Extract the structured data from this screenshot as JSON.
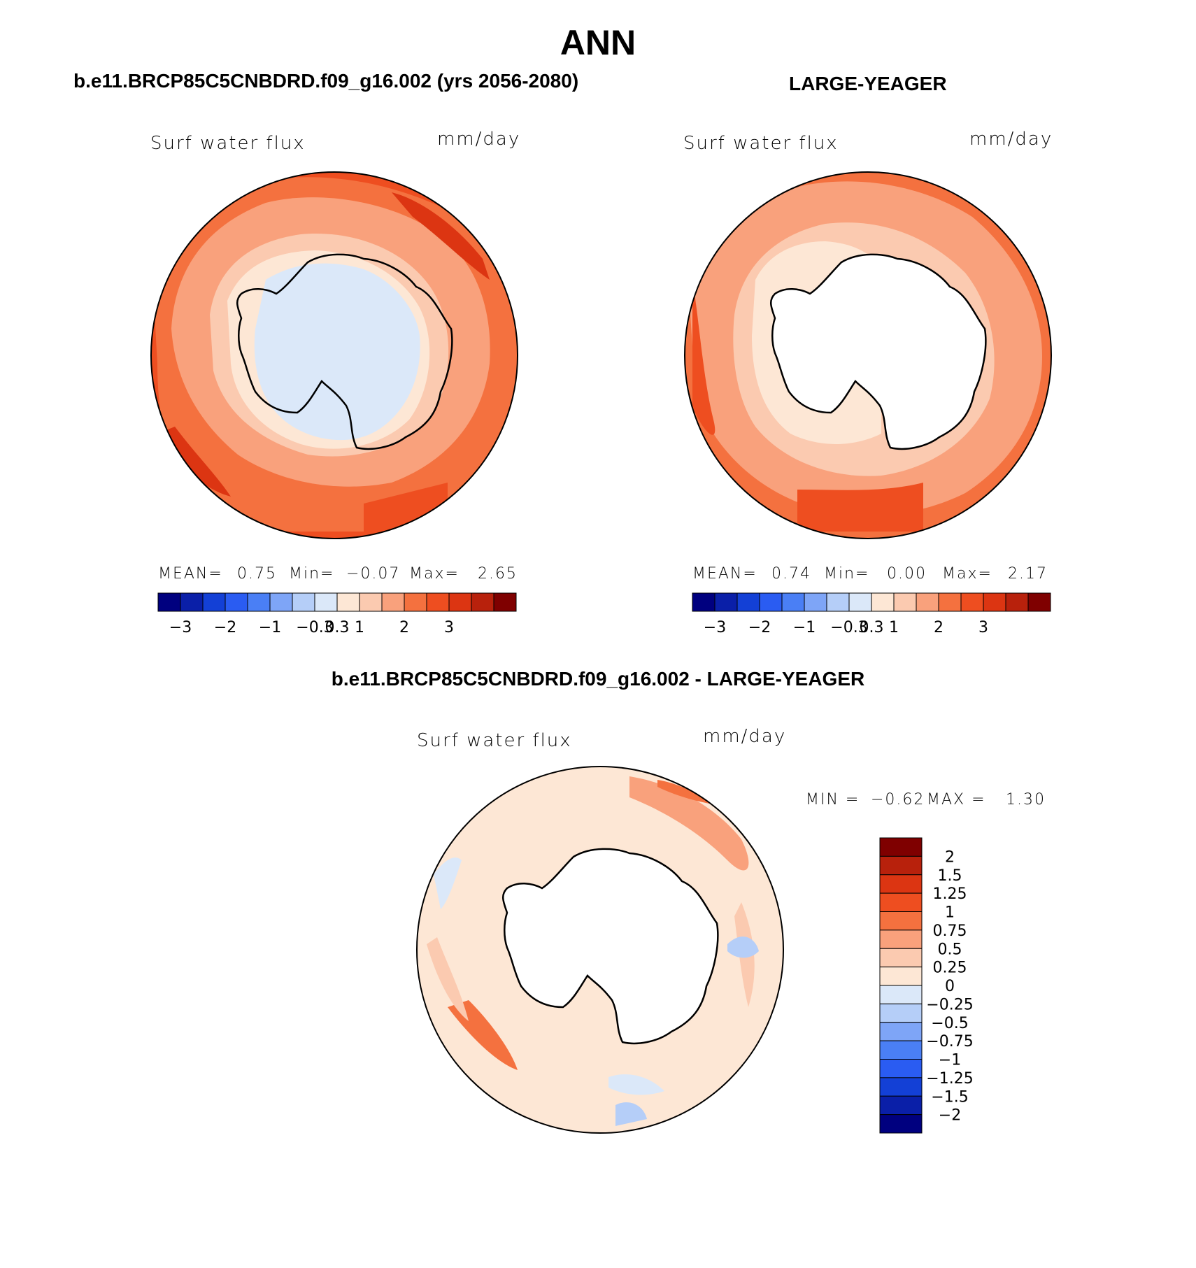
{
  "main_title": "ANN",
  "panels": {
    "left": {
      "title": "b.e11.BRCP85C5CNBDRD.f09_g16.002 (yrs 2056-2080)",
      "variable_label": "Surf water flux",
      "units_label": "mm/day",
      "stats": {
        "mean_label": "MEAN=",
        "mean": "0.75",
        "min_label": "Min=",
        "min": "−0.07",
        "max_label": "Max=",
        "max": "2.65"
      }
    },
    "right": {
      "title": "LARGE-YEAGER",
      "variable_label": "Surf water flux",
      "units_label": "mm/day",
      "stats": {
        "mean_label": "MEAN=",
        "mean": "0.74",
        "min_label": "Min=",
        "min": "0.00",
        "max_label": "Max=",
        "max": "2.17"
      }
    },
    "diff": {
      "title": "b.e11.BRCP85C5CNBDRD.f09_g16.002 - LARGE-YEAGER",
      "variable_label": "Surf water flux",
      "units_label": "mm/day",
      "minmax": {
        "min_label": "MIN =",
        "min": "−0.62",
        "max_label": "MAX =",
        "max": "1.30"
      }
    }
  },
  "horizontal_colorbar": {
    "colors": [
      "#00007f",
      "#0a1fa8",
      "#1340d6",
      "#2a5cf2",
      "#4a7ff5",
      "#7ea5f7",
      "#b5cef8",
      "#dbe8f9",
      "#fde7d5",
      "#fbcab0",
      "#f9a17c",
      "#f4713f",
      "#ee4e20",
      "#dc3512",
      "#b8210c",
      "#7f0000"
    ],
    "tick_labels": [
      "−3",
      "−2",
      "−1",
      "−0.3",
      "0.3",
      "1",
      "2",
      "3"
    ]
  },
  "vertical_colorbar": {
    "colors_top_to_bottom": [
      "#7f0000",
      "#b8210c",
      "#dc3512",
      "#ee4e20",
      "#f4713f",
      "#f9a17c",
      "#fbcab0",
      "#fde7d5",
      "#dbe8f9",
      "#b5cef8",
      "#7ea5f7",
      "#4a7ff5",
      "#2a5cf2",
      "#1340d6",
      "#0a1fa8",
      "#00007f"
    ],
    "tick_labels": [
      "2",
      "1.5",
      "1.25",
      "1",
      "0.75",
      "0.5",
      "0.25",
      "0",
      "−0.25",
      "−0.5",
      "−0.75",
      "−1",
      "−1.25",
      "−1.5",
      "−2"
    ]
  }
}
